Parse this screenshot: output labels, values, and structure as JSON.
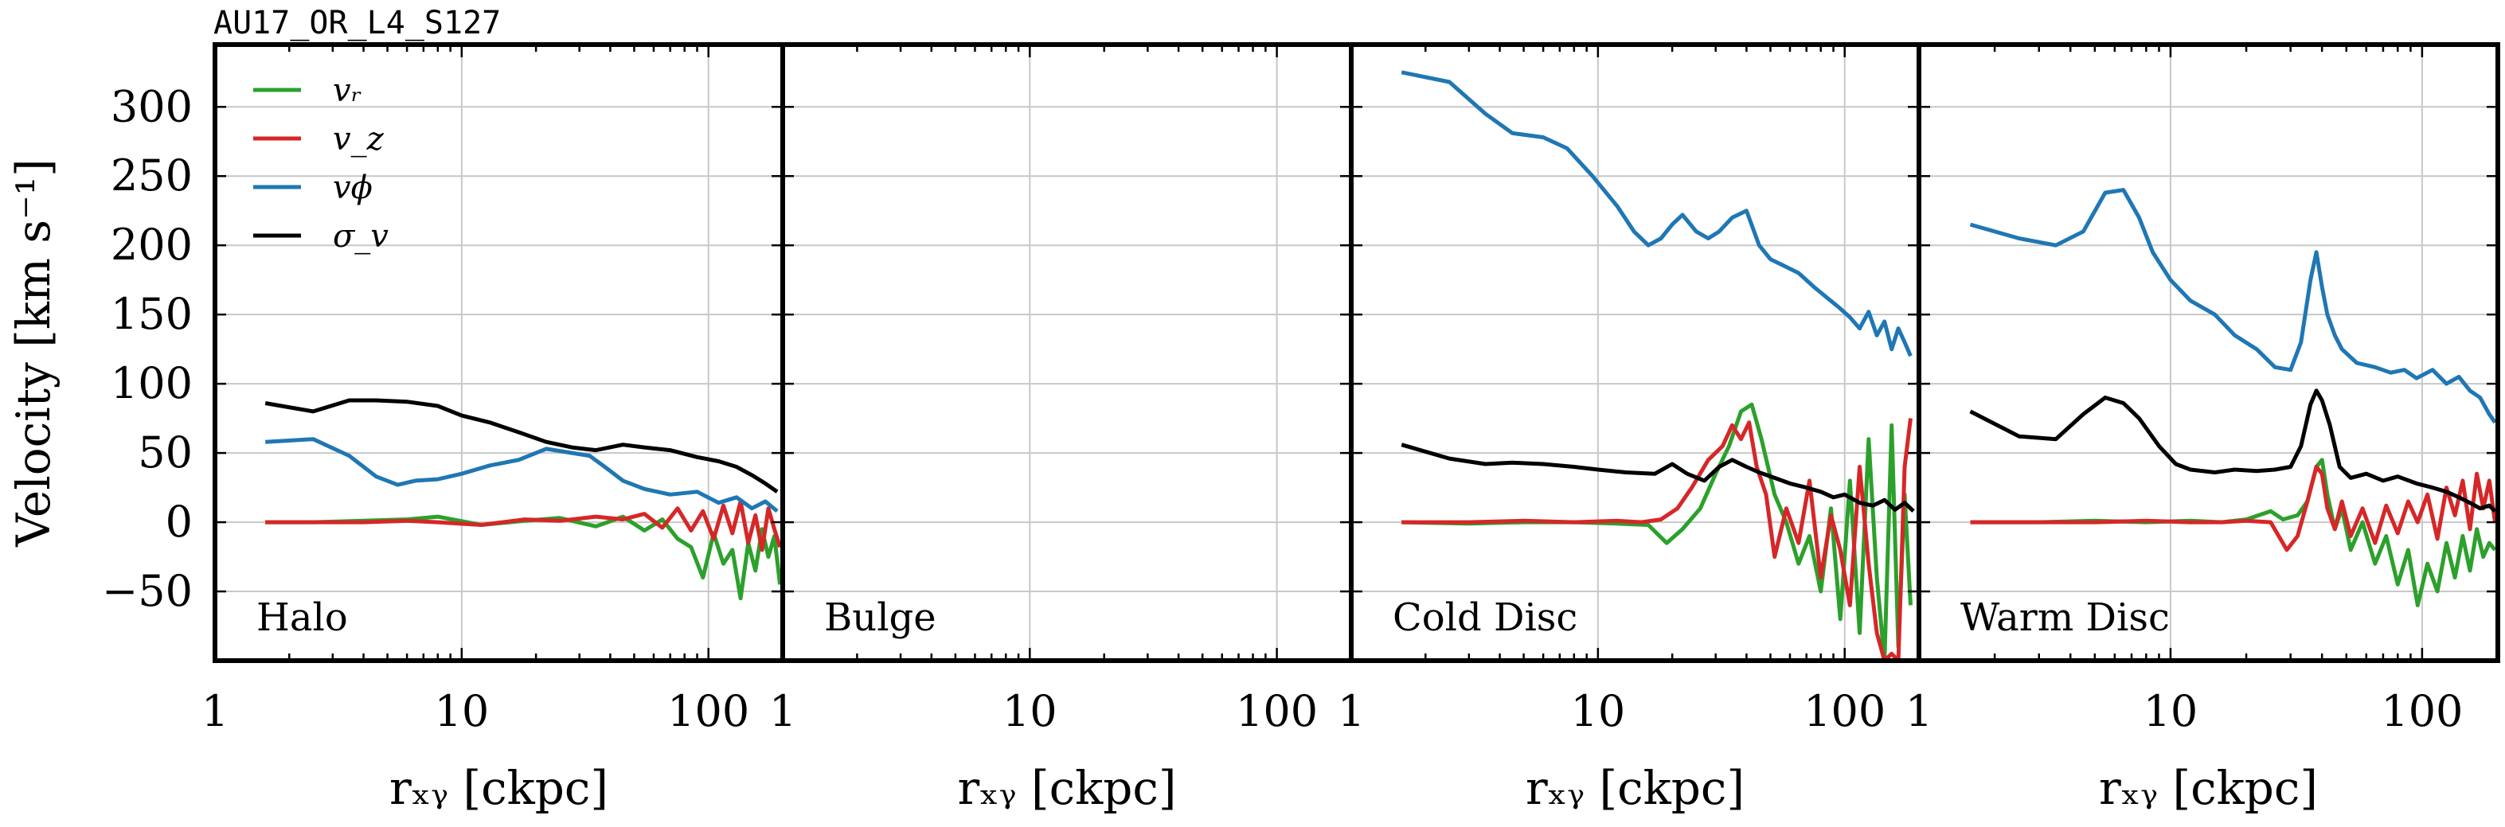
{
  "figure": {
    "title": "AU17_OR_L4_S127"
  },
  "chart_data": {
    "type": "line",
    "y_label": "Velocity [km s⁻¹]",
    "x_label": "rₓᵧ [ckpc]",
    "x_scale": "log",
    "xlim": [
      1,
      200
    ],
    "ylim": [
      -100,
      345
    ],
    "x_ticks": [
      1,
      10,
      100
    ],
    "x_tick_labels": [
      "1",
      "10",
      "100"
    ],
    "y_ticks": [
      -50,
      0,
      50,
      100,
      150,
      200,
      250,
      300
    ],
    "y_tick_labels": [
      "−50",
      "0",
      "50",
      "100",
      "150",
      "200",
      "250",
      "300"
    ],
    "grid": true,
    "legend": {
      "placement": "top-left",
      "entries": [
        {
          "label": "vᵣ",
          "color": "#2ca02c"
        },
        {
          "label": "v_z",
          "color": "#d62728"
        },
        {
          "label": "vϕ",
          "color": "#1f77b4"
        },
        {
          "label": "σ_v",
          "color": "#000000"
        }
      ]
    },
    "panels": [
      {
        "label": "Halo",
        "series": [
          {
            "key": "vr",
            "color": "#2ca02c",
            "x": [
              1.6,
              2.5,
              4,
              6,
              8,
              12,
              18,
              25,
              35,
              45,
              55,
              65,
              75,
              85,
              95,
              105,
              115,
              125,
              135,
              145,
              155,
              165,
              175,
              185,
              195
            ],
            "y": [
              0,
              0,
              1,
              2,
              4,
              -2,
              1,
              3,
              -3,
              4,
              -6,
              2,
              -12,
              -18,
              -40,
              -8,
              -30,
              -20,
              -55,
              -15,
              -35,
              -5,
              -25,
              -10,
              -45
            ]
          },
          {
            "key": "vz",
            "color": "#d62728",
            "x": [
              1.6,
              2.5,
              4,
              6,
              8,
              12,
              18,
              25,
              35,
              45,
              55,
              65,
              75,
              85,
              95,
              105,
              115,
              125,
              135,
              145,
              155,
              165,
              175,
              185,
              195
            ],
            "y": [
              0,
              0,
              0,
              1,
              0,
              -2,
              2,
              1,
              4,
              2,
              6,
              -4,
              10,
              -6,
              8,
              -12,
              12,
              -8,
              15,
              -15,
              5,
              -20,
              10,
              -5,
              -18
            ]
          },
          {
            "key": "vphi",
            "color": "#1f77b4",
            "x": [
              1.6,
              2.5,
              3.5,
              4.5,
              5.5,
              6.5,
              8,
              10,
              13,
              17,
              22,
              28,
              33,
              38,
              45,
              55,
              70,
              90,
              110,
              130,
              150,
              170,
              190
            ],
            "y": [
              58,
              60,
              48,
              33,
              27,
              30,
              31,
              35,
              41,
              45,
              53,
              50,
              48,
              40,
              30,
              24,
              20,
              22,
              14,
              18,
              10,
              15,
              8
            ]
          },
          {
            "key": "sigma",
            "color": "#000000",
            "x": [
              1.6,
              2.5,
              3.5,
              4.5,
              6,
              8,
              10,
              13,
              17,
              22,
              28,
              35,
              45,
              55,
              70,
              90,
              110,
              130,
              150,
              170,
              190
            ],
            "y": [
              86,
              80,
              88,
              88,
              87,
              84,
              77,
              72,
              65,
              58,
              54,
              52,
              56,
              54,
              52,
              47,
              44,
              40,
              34,
              28,
              22
            ]
          }
        ]
      },
      {
        "label": "Bulge",
        "series": []
      },
      {
        "label": "Cold Disc",
        "series": [
          {
            "key": "vr",
            "color": "#2ca02c",
            "x": [
              1.6,
              3,
              5,
              8,
              12,
              16,
              19,
              22,
              26,
              30,
              34,
              38,
              42,
              46,
              52,
              58,
              65,
              72,
              80,
              88,
              96,
              105,
              115,
              125,
              135,
              145,
              155,
              165,
              175,
              185
            ],
            "y": [
              0,
              -1,
              0,
              0,
              -1,
              -2,
              -15,
              -5,
              10,
              35,
              55,
              80,
              85,
              60,
              20,
              0,
              -30,
              -10,
              -50,
              10,
              -70,
              30,
              -80,
              60,
              -40,
              -100,
              70,
              -90,
              20,
              -60
            ]
          },
          {
            "key": "vz",
            "color": "#d62728",
            "x": [
              1.6,
              3,
              5,
              8,
              12,
              15,
              18,
              21,
              24,
              28,
              32,
              35,
              38,
              41,
              44,
              48,
              52,
              58,
              65,
              72,
              80,
              88,
              96,
              105,
              115,
              125,
              135,
              145,
              155,
              165,
              175,
              185
            ],
            "y": [
              0,
              0,
              1,
              0,
              1,
              0,
              2,
              10,
              25,
              45,
              55,
              70,
              60,
              72,
              40,
              20,
              -25,
              10,
              -15,
              30,
              -40,
              5,
              -20,
              -60,
              40,
              -30,
              -80,
              -100,
              -95,
              -100,
              40,
              75
            ]
          },
          {
            "key": "vphi",
            "color": "#1f77b4",
            "x": [
              1.6,
              2.5,
              3.5,
              4.5,
              6,
              7.5,
              9.5,
              12,
              14,
              16,
              18,
              20,
              22,
              25,
              28,
              31,
              35,
              40,
              45,
              50,
              57,
              65,
              75,
              85,
              95,
              105,
              115,
              125,
              135,
              145,
              155,
              165,
              175,
              185
            ],
            "y": [
              325,
              318,
              295,
              281,
              278,
              270,
              250,
              228,
              210,
              200,
              205,
              215,
              222,
              210,
              205,
              210,
              220,
              225,
              200,
              190,
              185,
              180,
              170,
              162,
              155,
              148,
              140,
              152,
              135,
              145,
              125,
              140,
              130,
              120
            ]
          },
          {
            "key": "sigma",
            "color": "#000000",
            "x": [
              1.6,
              2.5,
              3.5,
              4.5,
              6,
              8,
              10,
              13,
              17,
              20,
              23,
              27,
              31,
              35,
              40,
              45,
              52,
              60,
              70,
              80,
              90,
              100,
              115,
              130,
              145,
              160,
              175,
              190
            ],
            "y": [
              56,
              46,
              42,
              43,
              42,
              40,
              38,
              36,
              35,
              42,
              35,
              30,
              40,
              45,
              40,
              36,
              32,
              28,
              25,
              22,
              18,
              20,
              14,
              12,
              16,
              9,
              14,
              8
            ]
          }
        ]
      },
      {
        "label": "Warm Disc",
        "series": [
          {
            "key": "vr",
            "color": "#2ca02c",
            "x": [
              1.6,
              3,
              5,
              8,
              12,
              16,
              20,
              25,
              28,
              32,
              35,
              38,
              40,
              42,
              45,
              48,
              52,
              58,
              65,
              72,
              80,
              88,
              96,
              105,
              115,
              125,
              135,
              145,
              155,
              165,
              175,
              185,
              195
            ],
            "y": [
              0,
              0,
              1,
              0,
              1,
              0,
              2,
              8,
              2,
              5,
              15,
              40,
              45,
              20,
              -5,
              10,
              -20,
              0,
              -30,
              -10,
              -45,
              -20,
              -60,
              -30,
              -50,
              -15,
              -40,
              -10,
              -35,
              -5,
              -25,
              -15,
              -20
            ]
          },
          {
            "key": "vz",
            "color": "#d62728",
            "x": [
              1.6,
              3,
              5,
              8,
              12,
              16,
              20,
              25,
              29,
              32,
              35,
              38,
              40,
              42,
              45,
              48,
              52,
              58,
              65,
              72,
              80,
              88,
              96,
              105,
              115,
              125,
              135,
              145,
              155,
              165,
              175,
              185,
              195
            ],
            "y": [
              0,
              0,
              0,
              1,
              0,
              0,
              1,
              0,
              -20,
              -10,
              15,
              40,
              35,
              10,
              -5,
              15,
              -10,
              10,
              -15,
              12,
              -8,
              15,
              0,
              20,
              -12,
              25,
              5,
              30,
              -5,
              35,
              10,
              30,
              0
            ]
          },
          {
            "key": "vphi",
            "color": "#1f77b4",
            "x": [
              1.6,
              2.5,
              3.5,
              4.5,
              5.5,
              6.5,
              7.5,
              8.5,
              10,
              12,
              15,
              18,
              22,
              26,
              30,
              33,
              36,
              38,
              40,
              42,
              45,
              48,
              55,
              65,
              75,
              85,
              95,
              110,
              125,
              140,
              155,
              170,
              185,
              195
            ],
            "y": [
              215,
              205,
              200,
              210,
              238,
              240,
              220,
              195,
              175,
              160,
              150,
              135,
              125,
              112,
              110,
              130,
              175,
              195,
              170,
              150,
              135,
              125,
              115,
              112,
              108,
              110,
              104,
              110,
              100,
              105,
              95,
              90,
              78,
              72
            ]
          },
          {
            "key": "sigma",
            "color": "#000000",
            "x": [
              1.6,
              2.5,
              3.5,
              4.5,
              5.5,
              6.5,
              7.5,
              9,
              10.5,
              12,
              15,
              18,
              22,
              26,
              30,
              33,
              36,
              38,
              40,
              43,
              47,
              52,
              60,
              70,
              80,
              95,
              110,
              125,
              140,
              155,
              170,
              185,
              195
            ],
            "y": [
              80,
              62,
              60,
              78,
              90,
              86,
              75,
              55,
              42,
              38,
              36,
              38,
              37,
              38,
              40,
              55,
              85,
              95,
              88,
              70,
              40,
              32,
              35,
              30,
              33,
              28,
              25,
              22,
              18,
              14,
              10,
              12,
              8
            ]
          }
        ]
      }
    ]
  }
}
